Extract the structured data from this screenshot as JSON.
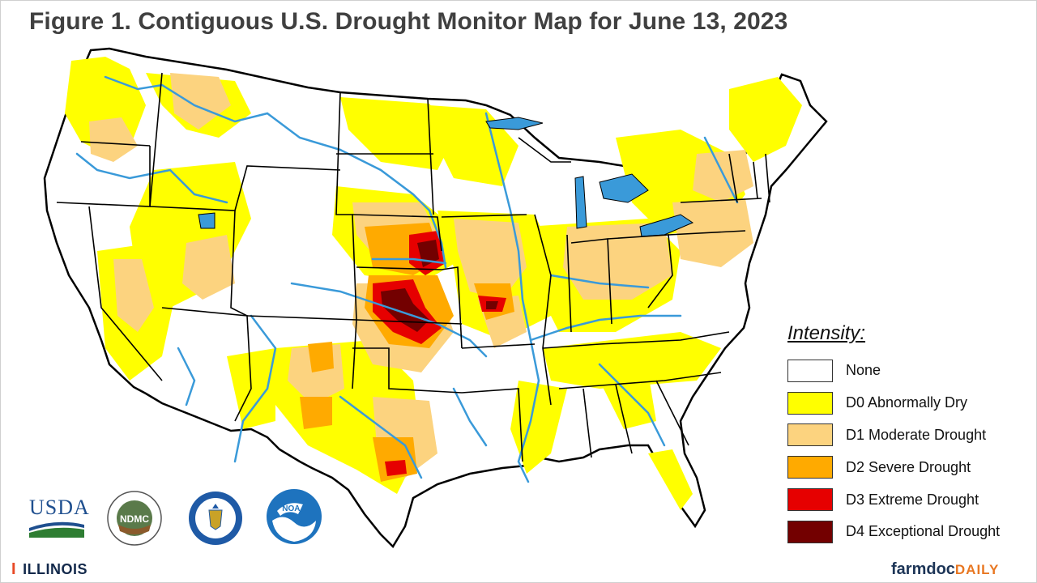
{
  "title": "Figure 1. Contiguous U.S. Drought Monitor Map for June 13, 2023",
  "legend": {
    "title": "Intensity:",
    "items": [
      {
        "label": "None",
        "color": "#ffffff"
      },
      {
        "label": "D0 Abnormally Dry",
        "color": "#ffff00"
      },
      {
        "label": "D1 Moderate Drought",
        "color": "#fcd37f"
      },
      {
        "label": "D2 Severe Drought",
        "color": "#ffaa00"
      },
      {
        "label": "D3 Extreme Drought",
        "color": "#e60000"
      },
      {
        "label": "D4 Exceptional Drought",
        "color": "#730000"
      }
    ]
  },
  "logos": {
    "usda": "USDA",
    "ndmc": "NDMC",
    "noaa": "NOAA",
    "illinois": "ILLINOIS",
    "farmdoc": "farmdoc",
    "farmdoc_daily": "DAILY"
  },
  "colors": {
    "water": "#3a9ad9",
    "border": "#000000",
    "title": "#404040"
  }
}
